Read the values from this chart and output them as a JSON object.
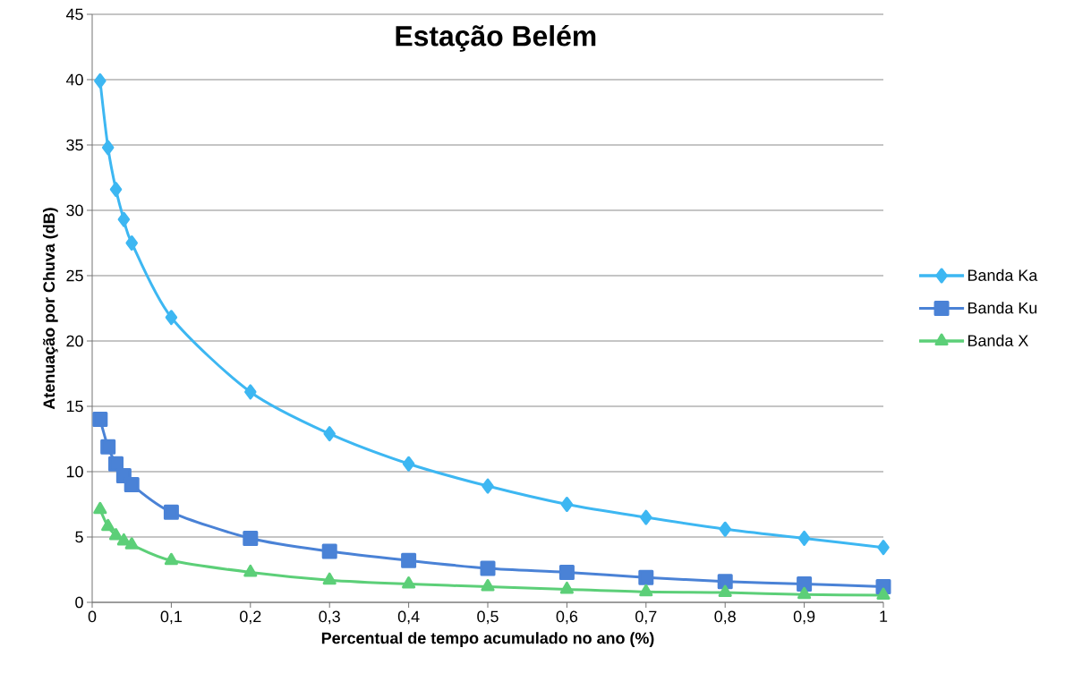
{
  "chart_data": {
    "type": "line",
    "title": "Estação Belém",
    "xlabel": "Percentual de tempo acumulado no ano (%)",
    "ylabel": "Atenuação por Chuva (dB)",
    "x": [
      0.01,
      0.02,
      0.03,
      0.04,
      0.05,
      0.1,
      0.2,
      0.3,
      0.4,
      0.5,
      0.6,
      0.7,
      0.8,
      0.9,
      1
    ],
    "series": [
      {
        "name": "Banda Ka",
        "color": "#3db7f2",
        "marker": "diamond",
        "values": [
          39.9,
          34.8,
          31.6,
          29.3,
          27.5,
          21.8,
          16.1,
          12.9,
          10.6,
          8.9,
          7.5,
          6.5,
          5.6,
          4.9,
          4.2
        ]
      },
      {
        "name": "Banda Ku",
        "color": "#4a82d6",
        "marker": "square",
        "values": [
          14.0,
          11.9,
          10.6,
          9.7,
          9.0,
          6.9,
          4.9,
          3.9,
          3.2,
          2.6,
          2.3,
          1.9,
          1.6,
          1.4,
          1.2
        ]
      },
      {
        "name": "Banda X",
        "color": "#5ccf78",
        "marker": "triangle",
        "values": [
          7.1,
          5.8,
          5.1,
          4.7,
          4.4,
          3.2,
          2.3,
          1.7,
          1.4,
          1.2,
          1.0,
          0.8,
          0.75,
          0.6,
          0.55
        ]
      }
    ],
    "xlim": [
      0,
      1
    ],
    "ylim": [
      0,
      45
    ],
    "xticks": [
      0,
      {
        "value": 0.1,
        "label": "0,1"
      },
      {
        "value": 0.2,
        "label": "0,2"
      },
      {
        "value": 0.3,
        "label": "0,3"
      },
      {
        "value": 0.4,
        "label": "0,4"
      },
      {
        "value": 0.5,
        "label": "0,5"
      },
      {
        "value": 0.6,
        "label": "0,6"
      },
      {
        "value": 0.7,
        "label": "0,7"
      },
      {
        "value": 0.8,
        "label": "0,8"
      },
      {
        "value": 0.9,
        "label": "0,9"
      },
      1
    ],
    "yticks": [
      0,
      5,
      10,
      15,
      20,
      25,
      30,
      35,
      40,
      45
    ],
    "grid": "y",
    "legend": "right",
    "line_style": "solid"
  }
}
